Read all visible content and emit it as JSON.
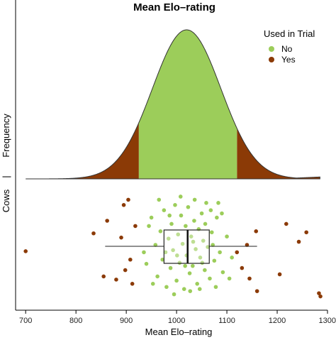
{
  "chart_data": {
    "type": "density + boxplot + strip",
    "title": "Mean Elo–rating",
    "xlabel": "Mean Elo–rating",
    "ylabel_top": "Frequency",
    "ylabel_bottom": "Cows",
    "ylabel_separator": "|",
    "xlim": [
      680,
      1300
    ],
    "x_ticks": [
      700,
      800,
      900,
      1000,
      1100,
      1200,
      1300
    ],
    "x_tick_labels": [
      "700",
      "800",
      "900",
      "1000",
      "1100",
      "1200",
      "1300"
    ],
    "legend": {
      "title": "Used in Trial",
      "entries": [
        {
          "label": "No",
          "color": "#9ccd5a"
        },
        {
          "label": "Yes",
          "color": "#8b3a06"
        }
      ]
    },
    "colors": {
      "no_fill": "#9ccd5a",
      "yes_fill": "#8b3a06",
      "no_point": "#9ccd5a",
      "yes_point": "#8b3a06",
      "outline": "#333333"
    },
    "density": {
      "range": [
        700,
        1285
      ],
      "mean": 1020,
      "sd": 68,
      "tail_level": 0.008,
      "no_interval": [
        925,
        1120
      ]
    },
    "boxplot": {
      "whisker_low": 858,
      "q1": 975,
      "median": 1022,
      "q3": 1065,
      "whisker_high": 1160
    },
    "points_no": [
      {
        "x": 935,
        "y": 0.55
      },
      {
        "x": 950,
        "y": 0.22
      },
      {
        "x": 958,
        "y": 0.48
      },
      {
        "x": 962,
        "y": 0.78
      },
      {
        "x": 968,
        "y": 0.35
      },
      {
        "x": 972,
        "y": 0.62
      },
      {
        "x": 975,
        "y": 0.15
      },
      {
        "x": 980,
        "y": 0.88
      },
      {
        "x": 984,
        "y": 0.42
      },
      {
        "x": 988,
        "y": 0.7
      },
      {
        "x": 990,
        "y": 0.28
      },
      {
        "x": 993,
        "y": 0.53
      },
      {
        "x": 997,
        "y": 0.1
      },
      {
        "x": 1000,
        "y": 0.82
      },
      {
        "x": 1003,
        "y": 0.38
      },
      {
        "x": 1006,
        "y": 0.65
      },
      {
        "x": 1009,
        "y": 0.2
      },
      {
        "x": 1012,
        "y": 0.47
      },
      {
        "x": 1015,
        "y": 0.9
      },
      {
        "x": 1018,
        "y": 0.3
      },
      {
        "x": 1020,
        "y": 0.58
      },
      {
        "x": 1023,
        "y": 0.12
      },
      {
        "x": 1026,
        "y": 0.75
      },
      {
        "x": 1029,
        "y": 0.4
      },
      {
        "x": 1032,
        "y": 0.68
      },
      {
        "x": 1035,
        "y": 0.25
      },
      {
        "x": 1038,
        "y": 0.52
      },
      {
        "x": 1041,
        "y": 0.85
      },
      {
        "x": 1044,
        "y": 0.33
      },
      {
        "x": 1047,
        "y": 0.6
      },
      {
        "x": 1050,
        "y": 0.18
      },
      {
        "x": 1053,
        "y": 0.44
      },
      {
        "x": 1056,
        "y": 0.72
      },
      {
        "x": 1059,
        "y": 0.08
      },
      {
        "x": 1062,
        "y": 0.5
      },
      {
        "x": 1066,
        "y": 0.8
      },
      {
        "x": 1070,
        "y": 0.36
      },
      {
        "x": 1075,
        "y": 0.63
      },
      {
        "x": 1080,
        "y": 0.22
      },
      {
        "x": 1086,
        "y": 0.55
      },
      {
        "x": 1092,
        "y": 0.74
      },
      {
        "x": 1100,
        "y": 0.4
      },
      {
        "x": 1110,
        "y": 0.6
      },
      {
        "x": 940,
        "y": 0.66
      },
      {
        "x": 953,
        "y": 0.85
      },
      {
        "x": 965,
        "y": 0.05
      },
      {
        "x": 978,
        "y": 0.55
      },
      {
        "x": 995,
        "y": 0.95
      },
      {
        "x": 1008,
        "y": 0.02
      },
      {
        "x": 1017,
        "y": 0.68
      },
      {
        "x": 1027,
        "y": 0.92
      },
      {
        "x": 1036,
        "y": 0.05
      },
      {
        "x": 1046,
        "y": 0.9
      },
      {
        "x": 1057,
        "y": 0.28
      },
      {
        "x": 1068,
        "y": 0.15
      },
      {
        "x": 1078,
        "y": 0.88
      },
      {
        "x": 1090,
        "y": 0.18
      },
      {
        "x": 1105,
        "y": 0.8
      },
      {
        "x": 945,
        "y": 0.3
      },
      {
        "x": 986,
        "y": 0.2
      },
      {
        "x": 1001,
        "y": 0.58
      },
      {
        "x": 1033,
        "y": 0.45
      },
      {
        "x": 1051,
        "y": 0.65
      },
      {
        "x": 1072,
        "y": 0.48
      },
      {
        "x": 1083,
        "y": 0.08
      }
    ],
    "points_yes": [
      {
        "x": 700,
        "y": 0.54
      },
      {
        "x": 835,
        "y": 0.37
      },
      {
        "x": 855,
        "y": 0.78
      },
      {
        "x": 862,
        "y": 0.25
      },
      {
        "x": 880,
        "y": 0.81
      },
      {
        "x": 890,
        "y": 0.41
      },
      {
        "x": 895,
        "y": 0.1
      },
      {
        "x": 898,
        "y": 0.72
      },
      {
        "x": 904,
        "y": 0.05
      },
      {
        "x": 908,
        "y": 0.62
      },
      {
        "x": 912,
        "y": 0.85
      },
      {
        "x": 918,
        "y": 0.3
      },
      {
        "x": 1120,
        "y": 0.55
      },
      {
        "x": 1130,
        "y": 0.7
      },
      {
        "x": 1140,
        "y": 0.48
      },
      {
        "x": 1145,
        "y": 0.8
      },
      {
        "x": 1158,
        "y": 0.35
      },
      {
        "x": 1160,
        "y": 0.92
      },
      {
        "x": 1205,
        "y": 0.76
      },
      {
        "x": 1218,
        "y": 0.28
      },
      {
        "x": 1243,
        "y": 0.45
      },
      {
        "x": 1258,
        "y": 0.36
      },
      {
        "x": 1283,
        "y": 0.94
      },
      {
        "x": 1286,
        "y": 0.97
      }
    ]
  }
}
